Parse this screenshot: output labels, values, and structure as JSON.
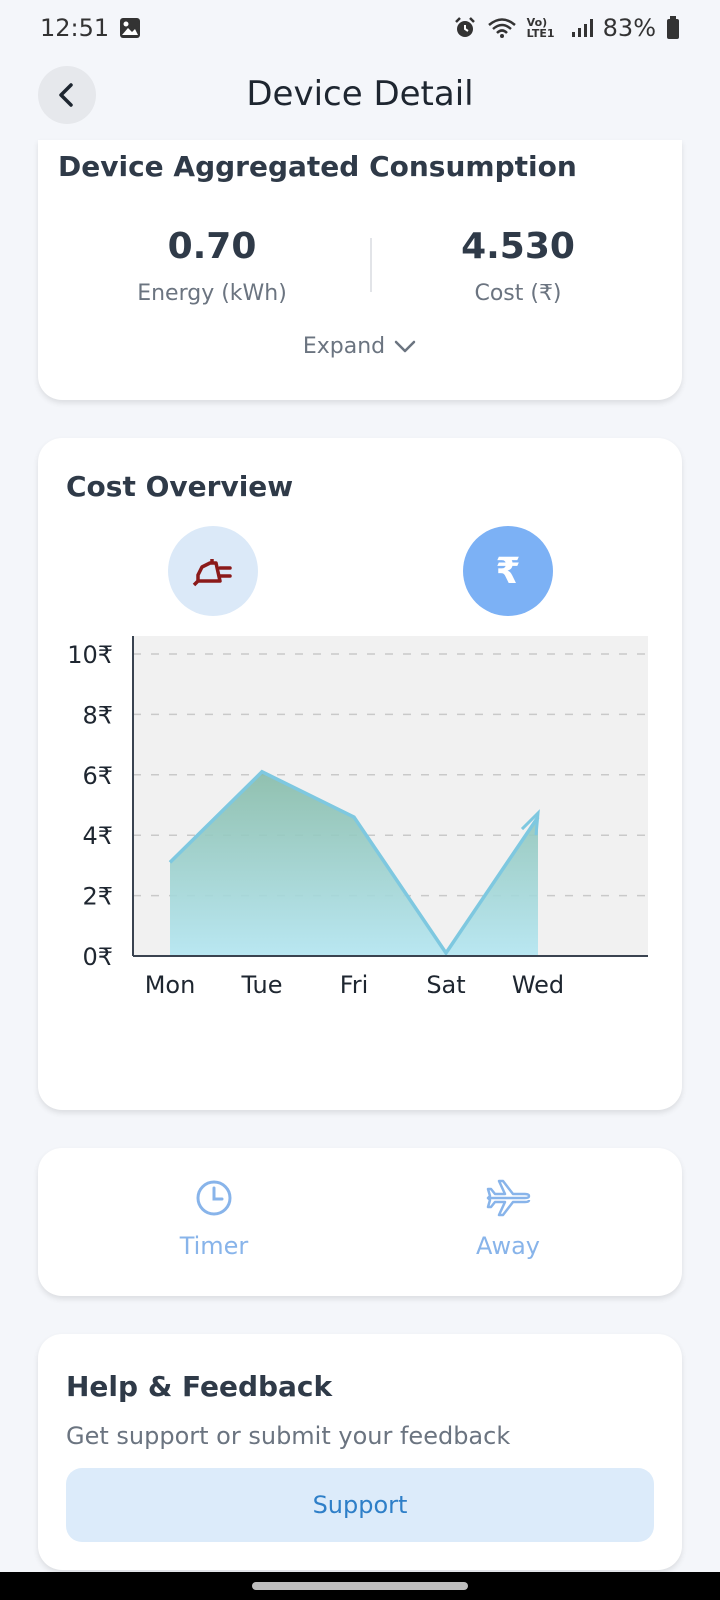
{
  "status_bar": {
    "time": "12:51",
    "network": "Vo) LTE1",
    "battery": "83%"
  },
  "app_bar": {
    "title": "Device Detail"
  },
  "aggregated": {
    "title": "Device Aggregated Consumption",
    "energy_value": "0.70",
    "energy_label": "Energy (kWh)",
    "cost_value": "4.530",
    "cost_label": "Cost (₹)",
    "expand_label": "Expand"
  },
  "cost_overview": {
    "title": "Cost Overview",
    "toggles": [
      {
        "icon": "plug-icon",
        "selected": false,
        "color": "#8b1a1a"
      },
      {
        "icon": "rupee-icon",
        "selected": true,
        "symbol": "₹"
      }
    ]
  },
  "chart_data": {
    "type": "area",
    "categories": [
      "Mon",
      "Tue",
      "Fri",
      "Sat",
      "Wed"
    ],
    "values": [
      3.1,
      6.1,
      4.6,
      0.1,
      4.6
    ],
    "yticks": [
      "0₹",
      "2₹",
      "4₹",
      "6₹",
      "8₹",
      "10₹"
    ],
    "ylim": [
      0,
      10
    ],
    "grid": true,
    "colors": {
      "line": "#7ec8e0",
      "fill_top": "#86bba8",
      "fill_bottom": "#b3e6f2",
      "plot_bg": "#f1f1f1"
    }
  },
  "actions": {
    "timer_label": "Timer",
    "away_label": "Away"
  },
  "help": {
    "title": "Help & Feedback",
    "subtitle": "Get support or submit your feedback",
    "button_label": "Support"
  }
}
